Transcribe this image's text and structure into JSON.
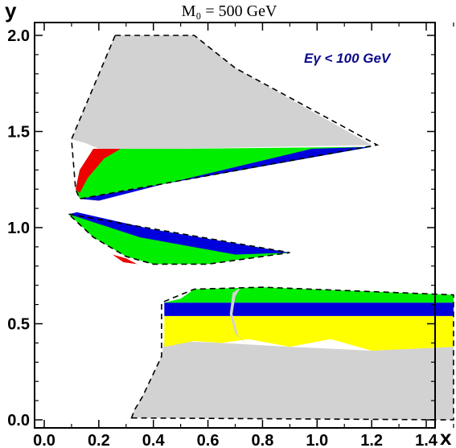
{
  "chart_data": {
    "type": "area",
    "title": "M₀ = 500 GeV",
    "xlabel": "x",
    "ylabel": "y",
    "xlim": [
      0.0,
      1.5
    ],
    "ylim": [
      0.0,
      2.0
    ],
    "xticks": [
      "0.0",
      "0.2",
      "0.4",
      "0.6",
      "0.8",
      "1.0",
      "1.2",
      "1.4"
    ],
    "yticks": [
      "0.0",
      "0.5",
      "1.0",
      "1.5",
      "2.0"
    ],
    "annotation": "Eγ < 100 GeV",
    "colors": {
      "gray": "#d2d2d2",
      "green": "#00ee00",
      "blue": "#0000dd",
      "red": "#ee0000",
      "yellow": "#ffff00",
      "annotation": "#0a0a8a"
    },
    "regions": [
      {
        "name": "upper-gray",
        "color": "gray",
        "points": [
          [
            0.26,
            2.0
          ],
          [
            0.55,
            2.0
          ],
          [
            0.7,
            1.83
          ],
          [
            1.2,
            1.43
          ],
          [
            0.5,
            1.41
          ],
          [
            0.2,
            1.41
          ],
          [
            0.15,
            1.44
          ],
          [
            0.1,
            1.46
          ]
        ]
      },
      {
        "name": "upper-green",
        "color": "green",
        "points": [
          [
            0.18,
            1.41
          ],
          [
            0.5,
            1.41
          ],
          [
            1.2,
            1.42
          ],
          [
            0.13,
            1.15
          ],
          [
            0.115,
            1.2
          ],
          [
            0.13,
            1.3
          ]
        ]
      },
      {
        "name": "upper-blue",
        "color": "blue",
        "points": [
          [
            1.2,
            1.42
          ],
          [
            0.98,
            1.41
          ],
          [
            0.42,
            1.22
          ],
          [
            0.2,
            1.14
          ],
          [
            0.13,
            1.15
          ]
        ]
      },
      {
        "name": "upper-red",
        "color": "red",
        "points": [
          [
            0.18,
            1.41
          ],
          [
            0.28,
            1.41
          ],
          [
            0.22,
            1.36
          ],
          [
            0.16,
            1.26
          ],
          [
            0.13,
            1.18
          ],
          [
            0.115,
            1.2
          ],
          [
            0.13,
            1.3
          ]
        ]
      },
      {
        "name": "middle-green",
        "color": "green",
        "points": [
          [
            0.09,
            1.07
          ],
          [
            0.28,
            1.02
          ],
          [
            0.9,
            0.87
          ],
          [
            0.6,
            0.81
          ],
          [
            0.4,
            0.81
          ],
          [
            0.3,
            0.85
          ],
          [
            0.18,
            0.95
          ]
        ]
      },
      {
        "name": "middle-blue",
        "color": "blue",
        "points": [
          [
            0.09,
            1.07
          ],
          [
            0.12,
            1.08
          ],
          [
            0.4,
            0.99
          ],
          [
            0.9,
            0.87
          ],
          [
            0.7,
            0.86
          ],
          [
            0.35,
            0.95
          ]
        ]
      },
      {
        "name": "middle-red",
        "color": "red",
        "points": [
          [
            0.25,
            0.86
          ],
          [
            0.29,
            0.82
          ],
          [
            0.34,
            0.81
          ],
          [
            0.3,
            0.84
          ]
        ]
      },
      {
        "name": "lower-gray",
        "color": "gray",
        "points": [
          [
            0.32,
            0.01
          ],
          [
            1.5,
            0.0
          ],
          [
            1.5,
            0.38
          ],
          [
            1.2,
            0.36
          ],
          [
            0.9,
            0.38
          ],
          [
            0.65,
            0.4
          ],
          [
            0.48,
            0.41
          ],
          [
            0.44,
            0.42
          ],
          [
            0.43,
            0.33
          ],
          [
            0.4,
            0.24
          ],
          [
            0.36,
            0.12
          ],
          [
            0.33,
            0.05
          ]
        ]
      },
      {
        "name": "lower-yellow",
        "color": "yellow",
        "points": [
          [
            0.44,
            0.54
          ],
          [
            1.5,
            0.54
          ],
          [
            1.5,
            0.38
          ],
          [
            1.2,
            0.36
          ],
          [
            1.05,
            0.42
          ],
          [
            0.9,
            0.38
          ],
          [
            0.75,
            0.42
          ],
          [
            0.65,
            0.4
          ],
          [
            0.55,
            0.41
          ],
          [
            0.44,
            0.38
          ]
        ]
      },
      {
        "name": "lower-blue",
        "color": "blue",
        "points": [
          [
            0.44,
            0.61
          ],
          [
            1.5,
            0.61
          ],
          [
            1.5,
            0.54
          ],
          [
            0.44,
            0.54
          ]
        ]
      },
      {
        "name": "lower-green",
        "color": "green",
        "points": [
          [
            0.44,
            0.61
          ],
          [
            0.5,
            0.63
          ],
          [
            0.55,
            0.68
          ],
          [
            0.8,
            0.69
          ],
          [
            1.5,
            0.65
          ],
          [
            1.5,
            0.61
          ]
        ]
      },
      {
        "name": "lower-gray-arc",
        "color": "gray",
        "points": [
          [
            0.72,
            0.69
          ],
          [
            0.69,
            0.66
          ],
          [
            0.68,
            0.55
          ],
          [
            0.7,
            0.45
          ],
          [
            0.75,
            0.38
          ],
          [
            0.71,
            0.44
          ],
          [
            0.69,
            0.55
          ],
          [
            0.7,
            0.64
          ]
        ]
      }
    ],
    "outlines": [
      {
        "name": "upper-outline",
        "points": [
          [
            0.26,
            2.0
          ],
          [
            0.55,
            2.0
          ],
          [
            0.7,
            1.83
          ],
          [
            1.22,
            1.43
          ],
          [
            0.13,
            1.15
          ],
          [
            0.115,
            1.2
          ],
          [
            0.1,
            1.46
          ]
        ]
      },
      {
        "name": "middle-outline",
        "points": [
          [
            0.09,
            1.07
          ],
          [
            0.9,
            0.87
          ],
          [
            0.6,
            0.81
          ],
          [
            0.4,
            0.81
          ],
          [
            0.3,
            0.85
          ],
          [
            0.18,
            0.95
          ]
        ]
      },
      {
        "name": "lower-outline",
        "points": [
          [
            0.32,
            0.01
          ],
          [
            1.5,
            0.0
          ],
          [
            1.5,
            0.65
          ],
          [
            0.8,
            0.69
          ],
          [
            0.55,
            0.68
          ],
          [
            0.43,
            0.61
          ],
          [
            0.43,
            0.33
          ],
          [
            0.4,
            0.24
          ],
          [
            0.36,
            0.12
          ],
          [
            0.33,
            0.05
          ]
        ]
      }
    ]
  }
}
